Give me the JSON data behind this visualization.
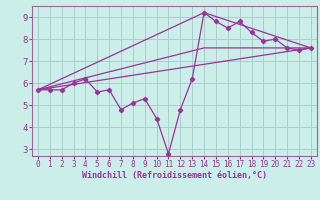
{
  "bg_color": "#cceee8",
  "grid_color": "#aacccc",
  "line_color": "#993399",
  "axis_color": "#993399",
  "spine_color": "#996699",
  "xlabel": "Windchill (Refroidissement éolien,°C)",
  "xlim": [
    -0.5,
    23.5
  ],
  "ylim": [
    2.7,
    9.5
  ],
  "xticks": [
    0,
    1,
    2,
    3,
    4,
    5,
    6,
    7,
    8,
    9,
    10,
    11,
    12,
    13,
    14,
    15,
    16,
    17,
    18,
    19,
    20,
    21,
    22,
    23
  ],
  "yticks": [
    3,
    4,
    5,
    6,
    7,
    8,
    9
  ],
  "line_main_x": [
    0,
    1,
    2,
    3,
    4,
    5,
    6,
    7,
    8,
    9,
    10,
    11,
    12,
    13,
    14,
    15,
    16,
    17,
    18,
    19,
    20,
    21,
    22,
    23
  ],
  "line_main_y": [
    5.7,
    5.7,
    5.7,
    6.0,
    6.2,
    5.6,
    5.7,
    4.8,
    5.1,
    5.3,
    4.4,
    2.8,
    4.8,
    6.2,
    9.2,
    8.8,
    8.5,
    8.8,
    8.3,
    7.9,
    8.0,
    7.6,
    7.5,
    7.6
  ],
  "line2_x": [
    0,
    23
  ],
  "line2_y": [
    5.7,
    7.6
  ],
  "line3_x": [
    0,
    14,
    23
  ],
  "line3_y": [
    5.7,
    7.6,
    7.6
  ],
  "line4_x": [
    0,
    14,
    23
  ],
  "line4_y": [
    5.7,
    9.2,
    7.6
  ],
  "tick_fontsize": 5.5,
  "xlabel_fontsize": 6.0
}
